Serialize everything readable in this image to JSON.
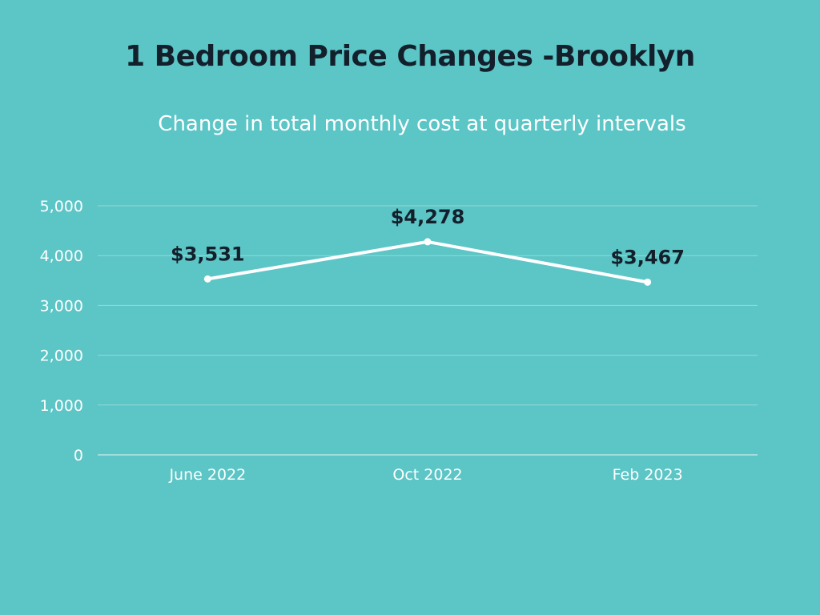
{
  "chart_data": {
    "type": "line",
    "title": "1 Bedroom Price Changes -Brooklyn",
    "subtitle": "Change in total monthly cost at quarterly intervals",
    "categories": [
      "June 2022",
      "Oct 2022",
      "Feb 2023"
    ],
    "series": [
      {
        "values": [
          3531,
          4278,
          3467
        ],
        "data_labels": [
          "$3,531",
          "$4,278",
          "$3,467"
        ],
        "color": "#ffffff"
      }
    ],
    "yticks": [
      0,
      1000,
      2000,
      3000,
      4000,
      5000
    ],
    "ytick_labels": [
      "0",
      "1,000",
      "2,000",
      "3,000",
      "4,000",
      "5,000"
    ],
    "ylim": [
      0,
      5000
    ],
    "grid": true,
    "legend": "none",
    "colors": {
      "background": "#5cc5c6",
      "title": "#13202b",
      "data_label": "#13202b",
      "line": "#ffffff",
      "text": "#ffffff"
    }
  }
}
